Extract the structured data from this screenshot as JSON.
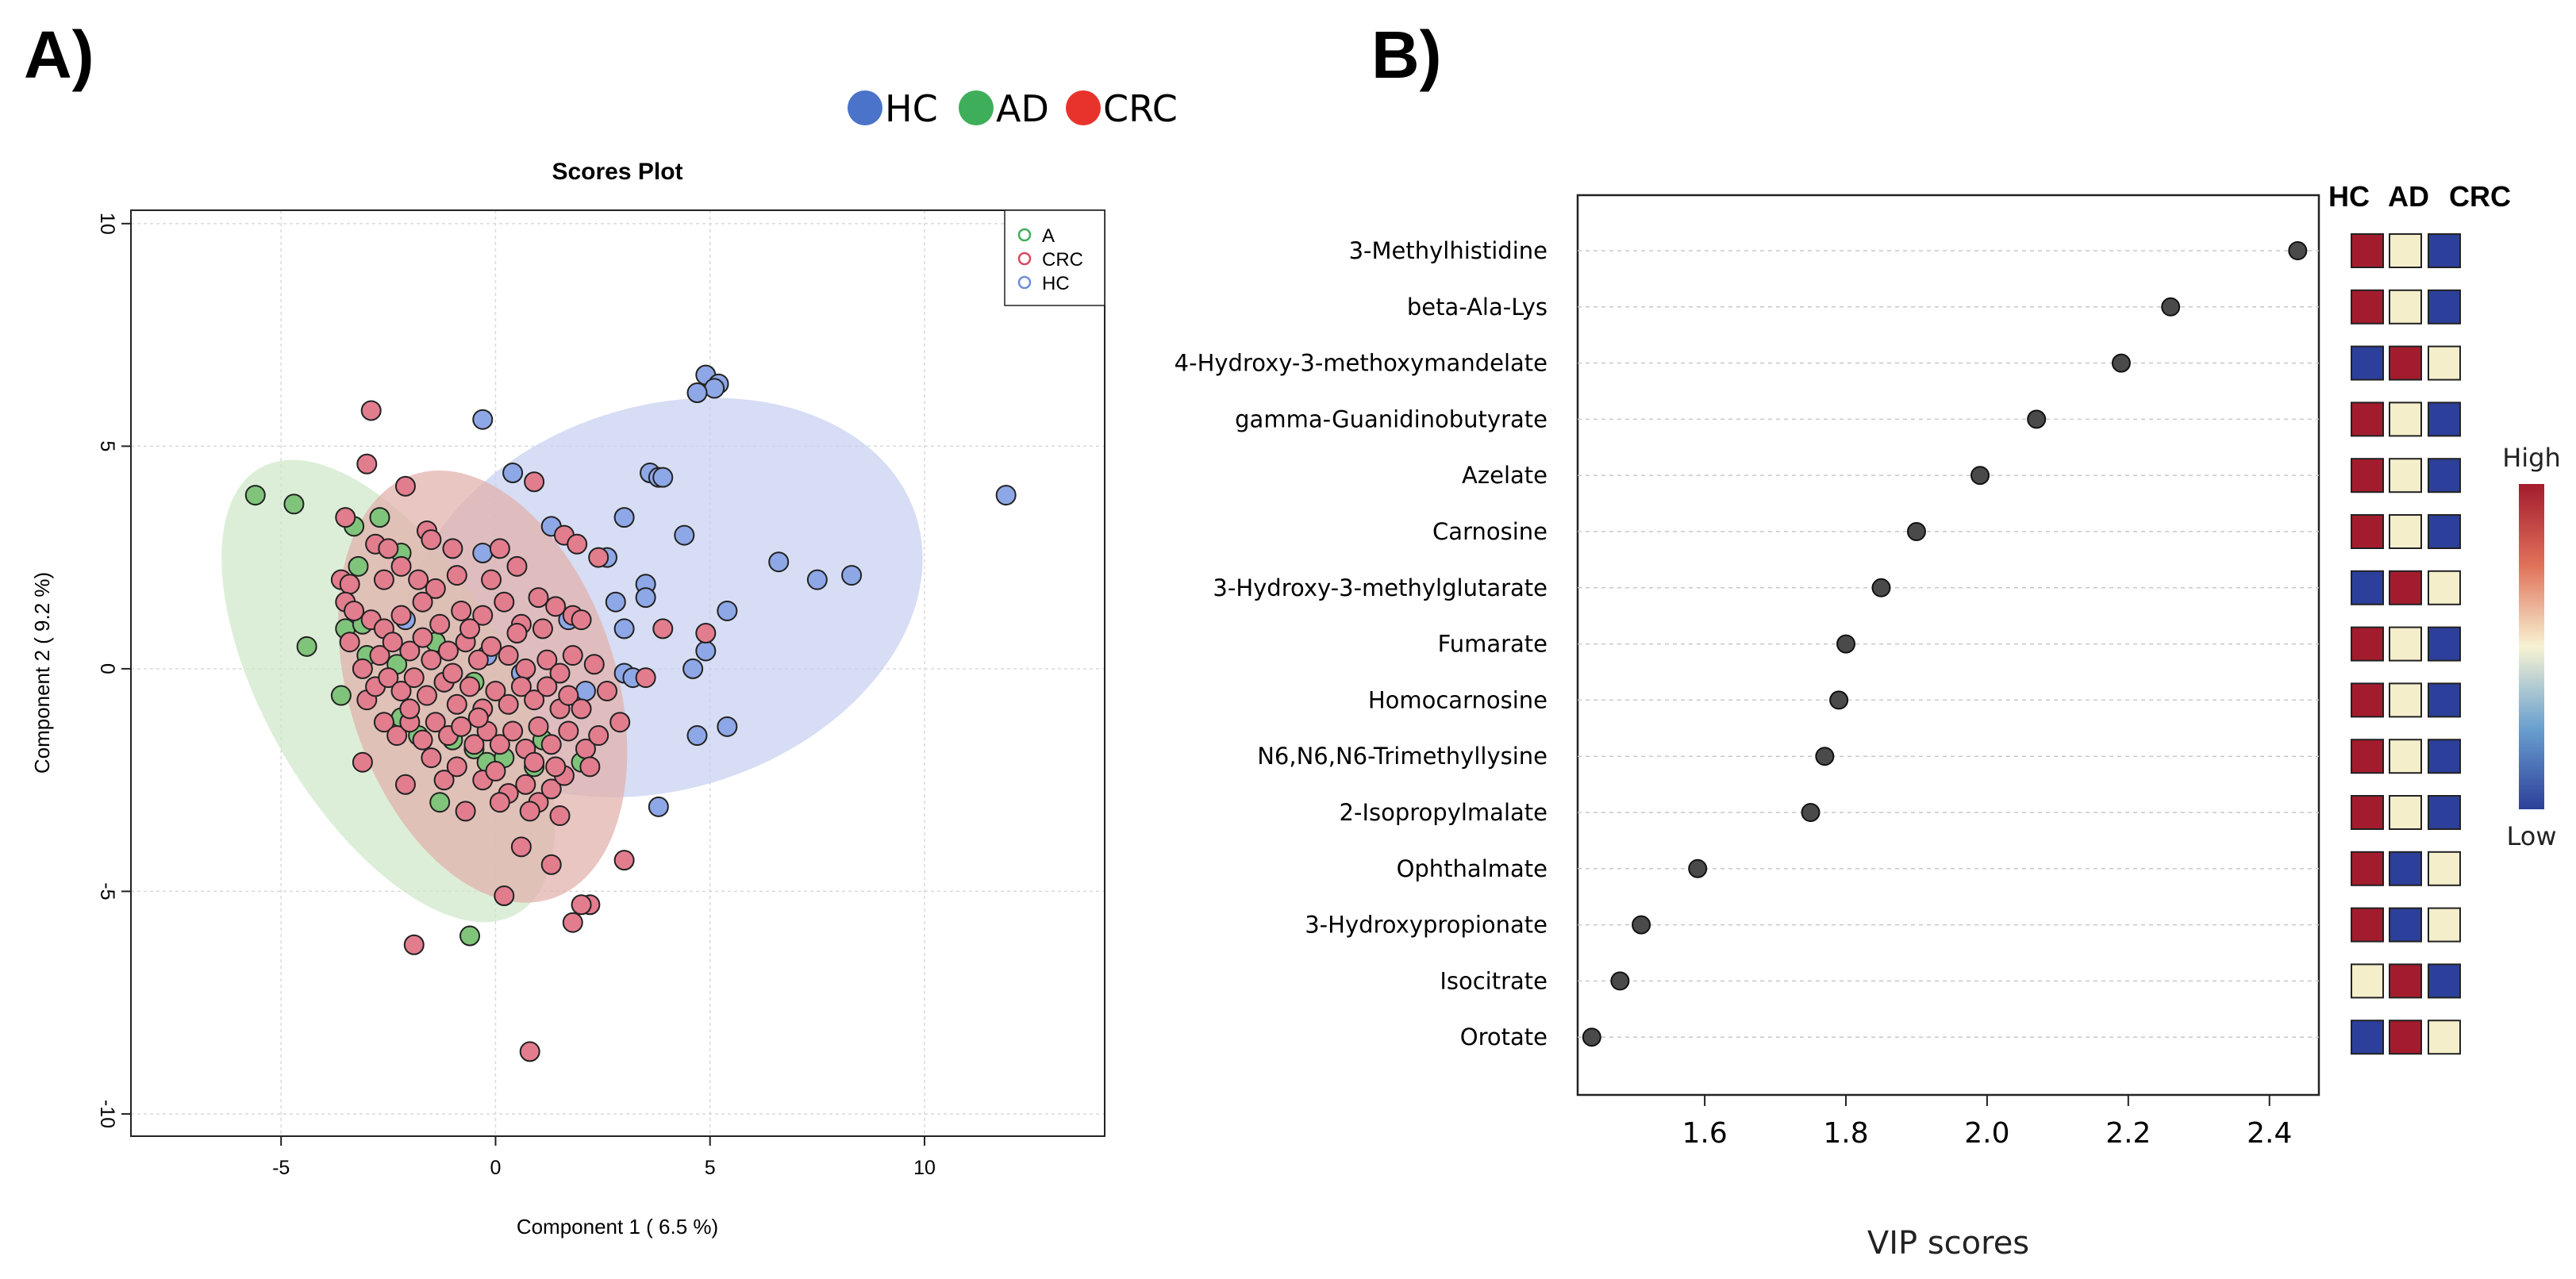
{
  "panels": {
    "a_label": "A)",
    "b_label": "B)"
  },
  "group_legend": [
    {
      "label": "HC",
      "color": "#4a73c9"
    },
    {
      "label": "AD",
      "color": "#3fae5a"
    },
    {
      "label": "CRC",
      "color": "#e8332d"
    }
  ],
  "chart_data": [
    {
      "type": "scatter",
      "title": "Scores Plot",
      "xlabel": "Component 1 ( 6.5 %)",
      "ylabel": "Component 2 ( 9.2 %)",
      "xlim": [
        -8.5,
        14.2
      ],
      "ylim": [
        -10.5,
        10.3
      ],
      "xticks": [
        -5,
        0,
        5,
        10
      ],
      "yticks": [
        -10,
        -5,
        0,
        5,
        10
      ],
      "grid": true,
      "legend_position": "top-right",
      "legend": [
        {
          "label": "A",
          "color": "#3fae5a"
        },
        {
          "label": "CRC",
          "color": "#d9485e"
        },
        {
          "label": "HC",
          "color": "#6c8ed8"
        }
      ],
      "ellipses": [
        {
          "group": "HC",
          "cx": 3.9,
          "cy": 1.6,
          "rx": 6.2,
          "ry": 4.3,
          "angle": 18,
          "fill": "#c6d0f0"
        },
        {
          "group": "A",
          "cx": -2.5,
          "cy": -0.5,
          "rx": 6.0,
          "ry": 2.75,
          "angle": -60,
          "fill": "#cfe8c9"
        },
        {
          "group": "CRC",
          "cx": -0.3,
          "cy": -0.4,
          "rx": 5.2,
          "ry": 3.0,
          "angle": -72,
          "fill": "#e2b0aa"
        }
      ],
      "series": [
        {
          "name": "HC",
          "color": "#8ea7e6",
          "points": [
            [
              4.9,
              6.6
            ],
            [
              5.2,
              6.4
            ],
            [
              5.1,
              6.3
            ],
            [
              4.7,
              6.2
            ],
            [
              -0.3,
              5.6
            ],
            [
              0.4,
              4.4
            ],
            [
              3.6,
              4.4
            ],
            [
              3.8,
              4.3
            ],
            [
              3.9,
              4.3
            ],
            [
              11.9,
              3.9
            ],
            [
              3.0,
              3.4
            ],
            [
              1.3,
              3.2
            ],
            [
              4.4,
              3.0
            ],
            [
              2.6,
              2.5
            ],
            [
              -0.3,
              2.6
            ],
            [
              6.6,
              2.4
            ],
            [
              7.5,
              2.0
            ],
            [
              8.3,
              2.1
            ],
            [
              3.5,
              1.9
            ],
            [
              3.5,
              1.6
            ],
            [
              2.8,
              1.5
            ],
            [
              5.4,
              1.3
            ],
            [
              1.7,
              1.1
            ],
            [
              3.0,
              0.9
            ],
            [
              4.9,
              0.4
            ],
            [
              4.6,
              0.0
            ],
            [
              3.0,
              -0.1
            ],
            [
              3.2,
              -0.2
            ],
            [
              2.1,
              -0.5
            ],
            [
              -0.2,
              0.3
            ],
            [
              0.6,
              -0.1
            ],
            [
              5.4,
              -1.3
            ],
            [
              4.7,
              -1.5
            ],
            [
              3.8,
              -3.1
            ],
            [
              -1.2,
              -0.3
            ],
            [
              -2.1,
              1.1
            ]
          ]
        },
        {
          "name": "A",
          "color": "#7fc47a",
          "points": [
            [
              -5.6,
              3.9
            ],
            [
              -4.7,
              3.7
            ],
            [
              -3.3,
              3.2
            ],
            [
              -2.7,
              3.4
            ],
            [
              -2.2,
              2.6
            ],
            [
              -3.2,
              2.3
            ],
            [
              -4.4,
              0.5
            ],
            [
              -3.5,
              0.9
            ],
            [
              -3.0,
              0.3
            ],
            [
              -3.6,
              -0.6
            ],
            [
              -2.2,
              -1.1
            ],
            [
              -1.8,
              -1.5
            ],
            [
              -1.0,
              -1.6
            ],
            [
              -0.5,
              -1.8
            ],
            [
              -0.2,
              -2.1
            ],
            [
              -1.3,
              -3.0
            ],
            [
              0.2,
              -2.0
            ],
            [
              0.9,
              -2.2
            ],
            [
              2.0,
              -2.1
            ],
            [
              1.1,
              -1.6
            ],
            [
              -0.6,
              -6.0
            ],
            [
              -2.3,
              0.1
            ],
            [
              -1.4,
              0.6
            ],
            [
              -0.5,
              -0.3
            ],
            [
              -3.1,
              1.0
            ]
          ]
        },
        {
          "name": "CRC",
          "color": "#e27d8e",
          "points": [
            [
              -2.9,
              5.8
            ],
            [
              -3.0,
              4.6
            ],
            [
              -2.1,
              4.1
            ],
            [
              0.9,
              4.2
            ],
            [
              -3.5,
              3.4
            ],
            [
              -2.8,
              2.8
            ],
            [
              -2.5,
              2.7
            ],
            [
              -1.6,
              3.1
            ],
            [
              -1.5,
              2.9
            ],
            [
              -1.0,
              2.7
            ],
            [
              0.1,
              2.7
            ],
            [
              1.6,
              3.0
            ],
            [
              1.9,
              2.8
            ],
            [
              -3.6,
              2.0
            ],
            [
              -3.4,
              1.9
            ],
            [
              -2.6,
              2.0
            ],
            [
              -2.2,
              2.3
            ],
            [
              -1.8,
              2.0
            ],
            [
              -1.4,
              1.8
            ],
            [
              -0.9,
              2.1
            ],
            [
              -0.1,
              2.0
            ],
            [
              0.5,
              2.3
            ],
            [
              1.0,
              1.6
            ],
            [
              1.4,
              1.4
            ],
            [
              2.4,
              2.5
            ],
            [
              -3.5,
              1.5
            ],
            [
              -3.3,
              1.3
            ],
            [
              -2.9,
              1.1
            ],
            [
              -2.6,
              0.9
            ],
            [
              -2.2,
              1.2
            ],
            [
              -1.7,
              1.5
            ],
            [
              -1.3,
              1.0
            ],
            [
              -0.8,
              1.3
            ],
            [
              -0.3,
              1.2
            ],
            [
              0.2,
              1.5
            ],
            [
              0.6,
              1.0
            ],
            [
              1.1,
              0.9
            ],
            [
              1.8,
              1.2
            ],
            [
              2.0,
              1.1
            ],
            [
              3.5,
              -0.2
            ],
            [
              3.9,
              0.9
            ],
            [
              4.9,
              0.8
            ],
            [
              -3.4,
              0.6
            ],
            [
              -3.1,
              0.0
            ],
            [
              -2.7,
              0.3
            ],
            [
              -2.4,
              0.6
            ],
            [
              -2.0,
              0.4
            ],
            [
              -1.7,
              0.7
            ],
            [
              -1.5,
              0.2
            ],
            [
              -1.1,
              0.4
            ],
            [
              -0.7,
              0.6
            ],
            [
              -0.4,
              0.2
            ],
            [
              -0.1,
              0.5
            ],
            [
              0.3,
              0.3
            ],
            [
              0.7,
              0.0
            ],
            [
              1.2,
              0.2
            ],
            [
              1.5,
              -0.1
            ],
            [
              2.3,
              0.1
            ],
            [
              -3.0,
              -0.7
            ],
            [
              -2.8,
              -0.4
            ],
            [
              -2.5,
              -0.2
            ],
            [
              -2.2,
              -0.5
            ],
            [
              -1.9,
              -0.2
            ],
            [
              -1.6,
              -0.6
            ],
            [
              -1.2,
              -0.3
            ],
            [
              -0.9,
              -0.8
            ],
            [
              -0.6,
              -0.4
            ],
            [
              -0.3,
              -0.9
            ],
            [
              0.0,
              -0.5
            ],
            [
              0.3,
              -0.8
            ],
            [
              0.6,
              -0.4
            ],
            [
              0.9,
              -0.7
            ],
            [
              1.2,
              -0.4
            ],
            [
              1.5,
              -0.9
            ],
            [
              1.7,
              -0.6
            ],
            [
              2.0,
              -0.9
            ],
            [
              -2.6,
              -1.2
            ],
            [
              -2.3,
              -1.5
            ],
            [
              -2.0,
              -1.2
            ],
            [
              -1.7,
              -1.6
            ],
            [
              -1.4,
              -1.2
            ],
            [
              -1.1,
              -1.5
            ],
            [
              -0.8,
              -1.3
            ],
            [
              -0.5,
              -1.7
            ],
            [
              -0.2,
              -1.4
            ],
            [
              0.1,
              -1.7
            ],
            [
              0.4,
              -1.4
            ],
            [
              0.7,
              -1.8
            ],
            [
              1.0,
              -1.3
            ],
            [
              1.3,
              -1.7
            ],
            [
              1.7,
              -1.4
            ],
            [
              2.1,
              -1.8
            ],
            [
              2.4,
              -1.5
            ],
            [
              2.9,
              -1.2
            ],
            [
              -3.1,
              -2.1
            ],
            [
              -2.1,
              -2.6
            ],
            [
              -1.2,
              -2.5
            ],
            [
              -0.9,
              -2.2
            ],
            [
              -0.3,
              -2.5
            ],
            [
              0.0,
              -2.3
            ],
            [
              0.3,
              -2.8
            ],
            [
              0.7,
              -2.6
            ],
            [
              1.0,
              -3.0
            ],
            [
              1.3,
              -2.7
            ],
            [
              1.6,
              -2.4
            ],
            [
              2.2,
              -2.2
            ],
            [
              0.1,
              -3.0
            ],
            [
              -0.7,
              -3.2
            ],
            [
              0.8,
              -3.2
            ],
            [
              1.5,
              -3.3
            ],
            [
              0.6,
              -4.0
            ],
            [
              1.3,
              -4.4
            ],
            [
              3.0,
              -4.3
            ],
            [
              0.2,
              -5.1
            ],
            [
              2.2,
              -5.3
            ],
            [
              2.0,
              -5.3
            ],
            [
              1.8,
              -5.7
            ],
            [
              -1.9,
              -6.2
            ],
            [
              0.8,
              -8.6
            ],
            [
              -1.0,
              -0.1
            ],
            [
              0.5,
              0.8
            ],
            [
              -2.0,
              -0.9
            ],
            [
              1.8,
              0.3
            ],
            [
              -0.4,
              -1.1
            ],
            [
              0.9,
              -2.1
            ],
            [
              -1.5,
              -2.0
            ],
            [
              2.6,
              -0.5
            ],
            [
              -0.6,
              0.9
            ],
            [
              1.4,
              -2.2
            ]
          ]
        }
      ]
    },
    {
      "type": "scatter",
      "orientation": "horizontal",
      "xlabel": "VIP scores",
      "xlim": [
        1.42,
        2.47
      ],
      "xticks": [
        1.6,
        1.8,
        2.0,
        2.2,
        2.4
      ],
      "xtick_labels": [
        "1.6",
        "1.8",
        "2.0",
        "2.2",
        "2.4"
      ],
      "categories": [
        "3-Methylhistidine",
        "beta-Ala-Lys",
        "4-Hydroxy-3-methoxymandelate",
        "gamma-Guanidinobutyrate",
        "Azelate",
        "Carnosine",
        "3-Hydroxy-3-methylglutarate",
        "Fumarate",
        "Homocarnosine",
        "N6,N6,N6-Trimethyllysine",
        "2-Isopropylmalate",
        "Ophthalmate",
        "3-Hydroxypropionate",
        "Isocitrate",
        "Orotate"
      ],
      "values": [
        2.44,
        2.26,
        2.19,
        2.07,
        1.99,
        1.9,
        1.85,
        1.8,
        1.79,
        1.77,
        1.75,
        1.59,
        1.51,
        1.48,
        1.44
      ],
      "heatmap": {
        "columns": [
          "HC",
          "AD",
          "CRC"
        ],
        "levels": [
          [
            "High",
            "Mid",
            "Low"
          ],
          [
            "High",
            "Mid",
            "Low"
          ],
          [
            "Low",
            "High",
            "Mid"
          ],
          [
            "High",
            "Mid",
            "Low"
          ],
          [
            "High",
            "Mid",
            "Low"
          ],
          [
            "High",
            "Mid",
            "Low"
          ],
          [
            "Low",
            "High",
            "Mid"
          ],
          [
            "High",
            "Mid",
            "Low"
          ],
          [
            "High",
            "Mid",
            "Low"
          ],
          [
            "High",
            "Mid",
            "Low"
          ],
          [
            "High",
            "Mid",
            "Low"
          ],
          [
            "High",
            "Low",
            "Mid"
          ],
          [
            "High",
            "Low",
            "Mid"
          ],
          [
            "Mid",
            "High",
            "Low"
          ],
          [
            "Low",
            "High",
            "Mid"
          ]
        ],
        "level_colors": {
          "High": "#a31c2e",
          "Mid": "#f5eecb",
          "Low": "#2c3f9a"
        },
        "colorbar_high": "High",
        "colorbar_low": "Low"
      }
    }
  ]
}
